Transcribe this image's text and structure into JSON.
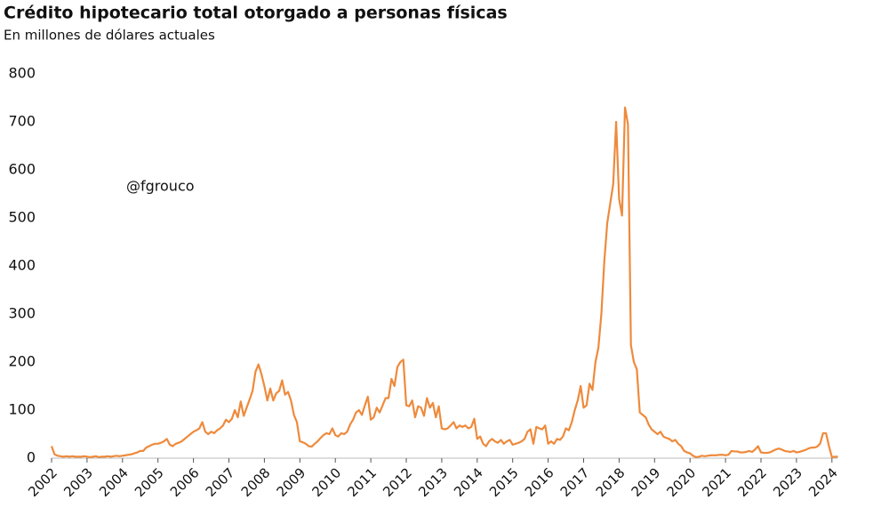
{
  "chart_data": {
    "type": "line",
    "title": "Crédito hipotecario total otorgado a personas físicas",
    "subtitle": "En millones de dólares actuales",
    "annotation": "@fgrouco",
    "categories": [
      "2002",
      null,
      null,
      null,
      null,
      null,
      null,
      null,
      null,
      null,
      null,
      null,
      "2003",
      null,
      null,
      null,
      null,
      null,
      null,
      null,
      null,
      null,
      null,
      null,
      "2004",
      null,
      null,
      null,
      null,
      null,
      null,
      null,
      null,
      null,
      null,
      null,
      "2005",
      null,
      null,
      null,
      null,
      null,
      null,
      null,
      null,
      null,
      null,
      null,
      "2006",
      null,
      null,
      null,
      null,
      null,
      null,
      null,
      null,
      null,
      null,
      null,
      "2007",
      null,
      null,
      null,
      null,
      null,
      null,
      null,
      null,
      null,
      null,
      null,
      "2008",
      null,
      null,
      null,
      null,
      null,
      null,
      null,
      null,
      null,
      null,
      null,
      "2009",
      null,
      null,
      null,
      null,
      null,
      null,
      null,
      null,
      null,
      null,
      null,
      "2010",
      null,
      null,
      null,
      null,
      null,
      null,
      null,
      null,
      null,
      null,
      null,
      "2011",
      null,
      null,
      null,
      null,
      null,
      null,
      null,
      null,
      null,
      null,
      null,
      "2012",
      null,
      null,
      null,
      null,
      null,
      null,
      null,
      null,
      null,
      null,
      null,
      "2013",
      null,
      null,
      null,
      null,
      null,
      null,
      null,
      null,
      null,
      null,
      null,
      "2014",
      null,
      null,
      null,
      null,
      null,
      null,
      null,
      null,
      null,
      null,
      null,
      "2015",
      null,
      null,
      null,
      null,
      null,
      null,
      null,
      null,
      null,
      null,
      null,
      "2016",
      null,
      null,
      null,
      null,
      null,
      null,
      null,
      null,
      null,
      null,
      null,
      "2017",
      null,
      null,
      null,
      null,
      null,
      null,
      null,
      null,
      null,
      null,
      null,
      "2018",
      null,
      null,
      null,
      null,
      null,
      null,
      null,
      null,
      null,
      null,
      null,
      "2019",
      null,
      null,
      null,
      null,
      null,
      null,
      null,
      null,
      null,
      null,
      null,
      "2020",
      null,
      null,
      null,
      null,
      null,
      null,
      null,
      null,
      null,
      null,
      null,
      "2021",
      null,
      null,
      null,
      null,
      null,
      null,
      null,
      null,
      null,
      null,
      null,
      "2022",
      null,
      null,
      null,
      null,
      null,
      null,
      null,
      null,
      null,
      null,
      null,
      "2023",
      null,
      null,
      null,
      null,
      null,
      null,
      null,
      null,
      null,
      null,
      null,
      "2024",
      null,
      null
    ],
    "series": [
      {
        "name": "Crédito hipotecario",
        "color": "#ee8a3c",
        "values": [
          25,
          8,
          5,
          4,
          3,
          4,
          3,
          4,
          3,
          3,
          3,
          4,
          3,
          2,
          3,
          4,
          2,
          3,
          3,
          4,
          3,
          4,
          5,
          4,
          5,
          6,
          7,
          8,
          10,
          12,
          15,
          15,
          22,
          25,
          28,
          30,
          30,
          32,
          35,
          40,
          28,
          25,
          30,
          32,
          35,
          40,
          45,
          50,
          55,
          58,
          62,
          75,
          55,
          50,
          55,
          52,
          58,
          62,
          68,
          80,
          75,
          82,
          100,
          85,
          118,
          88,
          105,
          122,
          140,
          180,
          195,
          175,
          150,
          120,
          145,
          120,
          135,
          140,
          162,
          132,
          138,
          120,
          90,
          75,
          35,
          33,
          30,
          25,
          24,
          30,
          35,
          42,
          48,
          52,
          50,
          62,
          48,
          45,
          52,
          50,
          55,
          70,
          80,
          95,
          100,
          90,
          110,
          128,
          80,
          85,
          105,
          95,
          110,
          125,
          125,
          165,
          150,
          190,
          200,
          205,
          110,
          108,
          120,
          85,
          108,
          105,
          88,
          125,
          105,
          115,
          85,
          108,
          62,
          60,
          62,
          68,
          75,
          62,
          68,
          65,
          68,
          62,
          65,
          82,
          40,
          45,
          30,
          25,
          35,
          40,
          35,
          32,
          38,
          30,
          35,
          38,
          28,
          30,
          32,
          35,
          40,
          55,
          60,
          30,
          65,
          62,
          60,
          68,
          30,
          35,
          30,
          40,
          38,
          45,
          62,
          58,
          75,
          100,
          120,
          150,
          105,
          110,
          155,
          142,
          200,
          230,
          300,
          410,
          490,
          530,
          570,
          700,
          540,
          505,
          730,
          695,
          235,
          200,
          185,
          95,
          90,
          85,
          70,
          60,
          55,
          50,
          55,
          45,
          42,
          40,
          35,
          38,
          30,
          25,
          15,
          12,
          10,
          5,
          2,
          3,
          5,
          4,
          5,
          6,
          6,
          6,
          7,
          7,
          6,
          7,
          15,
          14,
          14,
          12,
          12,
          13,
          15,
          13,
          18,
          25,
          12,
          11,
          11,
          12,
          15,
          18,
          20,
          18,
          15,
          14,
          13,
          15,
          12,
          13,
          15,
          17,
          20,
          22,
          22,
          24,
          30,
          52,
          52,
          25,
          2,
          3,
          3
        ]
      }
    ],
    "ylim": [
      0,
      800
    ],
    "yticks": [
      0,
      100,
      200,
      300,
      400,
      500,
      600,
      700,
      800
    ],
    "grid": false
  }
}
